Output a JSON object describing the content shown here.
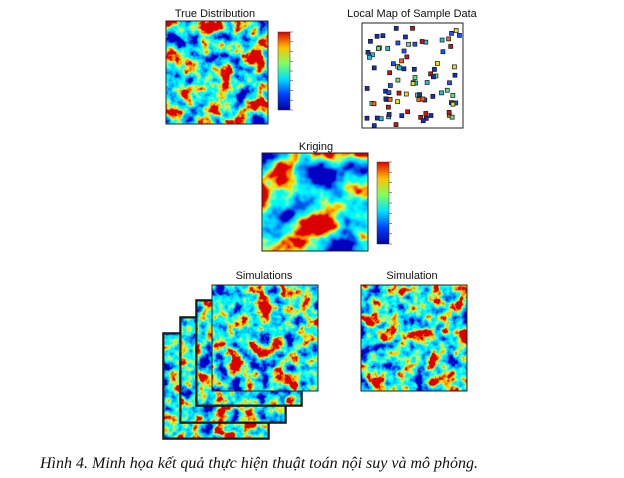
{
  "figure": {
    "panels": [
      {
        "title": "True Distribution"
      },
      {
        "title": "Local Map of Sample Data"
      },
      {
        "title": "Kriging"
      },
      {
        "title": "Simulations"
      },
      {
        "title": "Simulation"
      }
    ],
    "caption": "Hình 4. Minh họa kết quả thực hiện thuật toán nội suy và mô phỏng."
  }
}
